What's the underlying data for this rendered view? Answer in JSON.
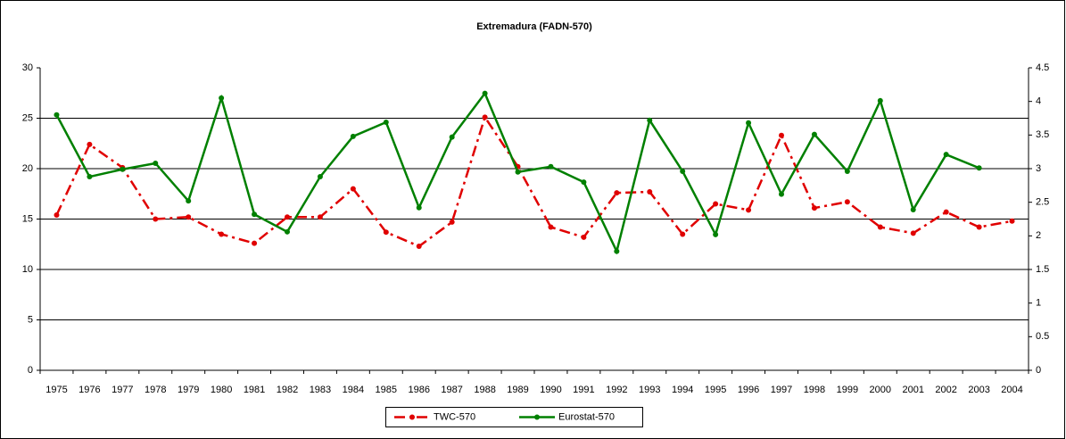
{
  "chart_data": {
    "type": "line",
    "title": "Extremadura (FADN-570)",
    "categories": [
      "1975",
      "1976",
      "1977",
      "1978",
      "1979",
      "1980",
      "1981",
      "1982",
      "1983",
      "1984",
      "1985",
      "1986",
      "1987",
      "1988",
      "1989",
      "1990",
      "1991",
      "1992",
      "1993",
      "1994",
      "1995",
      "1996",
      "1997",
      "1998",
      "1999",
      "2000",
      "2001",
      "2002",
      "2003",
      "2004"
    ],
    "series": [
      {
        "name": "TWC-570",
        "color": "#e00000",
        "style": "dash-dot",
        "axis": "y",
        "values": [
          15.4,
          22.4,
          20.1,
          15.0,
          15.2,
          13.5,
          12.6,
          15.2,
          15.2,
          18.0,
          13.7,
          12.3,
          14.7,
          25.1,
          20.2,
          14.2,
          13.2,
          17.6,
          17.7,
          13.5,
          16.5,
          15.9,
          23.3,
          16.1,
          16.7,
          14.2,
          13.6,
          15.7,
          14.2,
          14.8
        ]
      },
      {
        "name": "Eurostat-570",
        "color": "#008000",
        "style": "solid",
        "axis": "y2",
        "values": [
          3.8,
          2.88,
          2.99,
          3.08,
          2.52,
          4.05,
          2.32,
          2.06,
          2.88,
          3.48,
          3.69,
          2.42,
          3.47,
          4.12,
          2.95,
          3.03,
          2.8,
          1.77,
          3.72,
          2.96,
          2.02,
          3.68,
          2.62,
          3.51,
          2.96,
          4.01,
          2.39,
          3.21,
          3.01,
          null
        ]
      }
    ],
    "ylim": [
      0,
      30
    ],
    "yticks": [
      0,
      5,
      10,
      15,
      20,
      25,
      30
    ],
    "y2lim": [
      0,
      4.5
    ],
    "y2ticks": [
      0,
      0.5,
      1,
      1.5,
      2,
      2.5,
      3,
      3.5,
      4,
      4.5
    ],
    "grid": true,
    "legend": "bottom"
  }
}
